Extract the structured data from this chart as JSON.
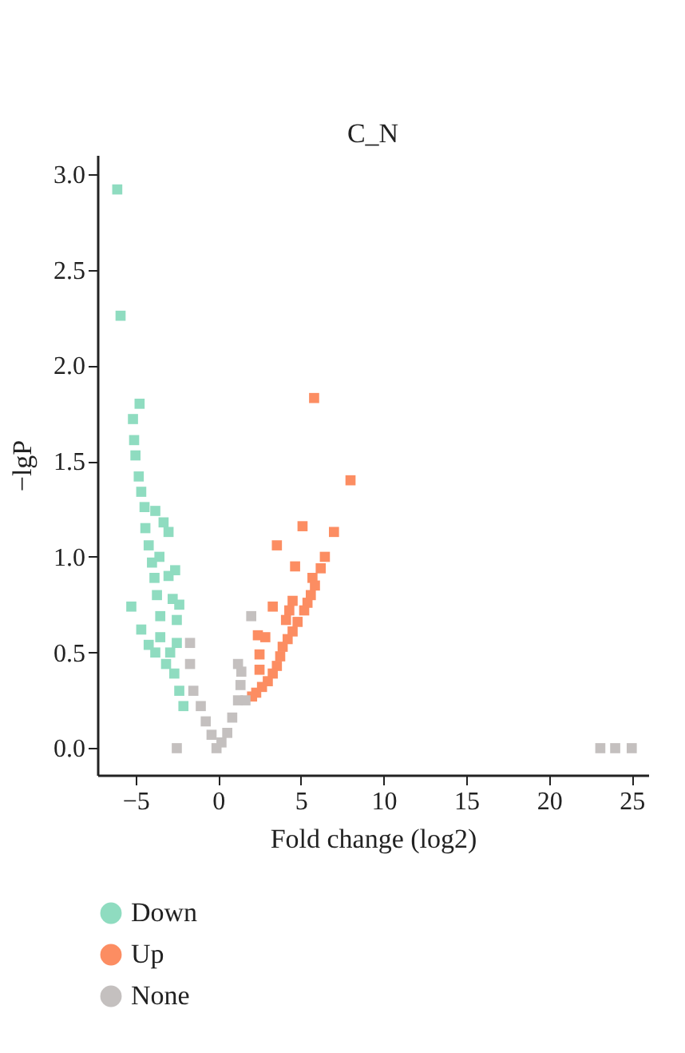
{
  "chart_data": {
    "type": "scatter",
    "title": "C_N",
    "xlabel": "Fold change (log2)",
    "ylabel": "−lgP",
    "xlim": [
      -7.3,
      26
    ],
    "ylim": [
      -0.14,
      3.1
    ],
    "xticks": [
      {
        "value": -5,
        "label": "−5"
      },
      0,
      5,
      10,
      15,
      20,
      25
    ],
    "yticks": [
      {
        "value": 0,
        "label": "0.0"
      },
      {
        "value": 0.5,
        "label": "0.5"
      },
      {
        "value": 1,
        "label": "1.0"
      },
      {
        "value": 1.5,
        "label": "1.5"
      },
      {
        "value": 2,
        "label": "2.0"
      },
      {
        "value": 2.5,
        "label": "2.5"
      },
      {
        "value": 3,
        "label": "3.0"
      }
    ],
    "grid": false,
    "legend": "bottom",
    "marker": "square",
    "series": [
      {
        "name": "Down",
        "color": "#8fdcc0",
        "x": [
          -6.1,
          -5.9,
          -4.75,
          -5.15,
          -5.08,
          -5.0,
          -4.8,
          -4.65,
          -4.45,
          -3.8,
          -3.3,
          -3.0,
          -4.4,
          -4.2,
          -3.55,
          -4.0,
          -2.6,
          -3.0,
          -3.85,
          -5.25,
          -3.7,
          -2.75,
          -2.35,
          -4.65,
          -3.5,
          -2.5,
          -4.2,
          -3.5,
          -3.8,
          -3.15,
          -2.65,
          -2.35,
          -2.1,
          -2.9,
          -2.5
        ],
        "values": [
          2.92,
          2.26,
          1.8,
          1.72,
          1.61,
          1.53,
          1.42,
          1.34,
          1.26,
          1.24,
          1.18,
          1.13,
          1.15,
          1.06,
          1.0,
          0.97,
          0.93,
          0.9,
          0.89,
          0.74,
          0.8,
          0.78,
          0.75,
          0.62,
          0.69,
          0.67,
          0.54,
          0.58,
          0.5,
          0.44,
          0.39,
          0.3,
          0.22,
          0.5,
          0.55
        ]
      },
      {
        "name": "Up",
        "color": "#fc8d62",
        "x": [
          5.8,
          8.0,
          5.1,
          7.0,
          3.55,
          6.45,
          6.2,
          4.65,
          5.7,
          5.85,
          5.6,
          5.4,
          5.2,
          4.5,
          4.3,
          3.3,
          4.8,
          4.1,
          4.5,
          4.2,
          2.4,
          2.85,
          3.9,
          2.5,
          3.75,
          3.55,
          2.5,
          3.3,
          3.0,
          2.65,
          2.3,
          2.05
        ],
        "values": [
          1.83,
          1.4,
          1.16,
          1.13,
          1.06,
          1.0,
          0.94,
          0.95,
          0.89,
          0.85,
          0.8,
          0.76,
          0.72,
          0.77,
          0.72,
          0.74,
          0.66,
          0.67,
          0.61,
          0.57,
          0.59,
          0.58,
          0.53,
          0.49,
          0.48,
          0.43,
          0.41,
          0.39,
          0.35,
          0.32,
          0.29,
          0.27
        ]
      },
      {
        "name": "None",
        "color": "#c4c0bf",
        "x": [
          -2.5,
          -1.7,
          -1.7,
          -1.5,
          -1.05,
          -0.75,
          -0.4,
          -0.1,
          0.2,
          0.55,
          0.85,
          1.2,
          1.35,
          2.0,
          1.65,
          1.2,
          1.4,
          23.1,
          24.0,
          25.0
        ],
        "values": [
          0.0,
          0.55,
          0.44,
          0.3,
          0.22,
          0.14,
          0.07,
          0.0,
          0.03,
          0.08,
          0.16,
          0.25,
          0.33,
          0.69,
          0.25,
          0.44,
          0.4,
          0.0,
          0.0,
          0.0
        ]
      }
    ]
  }
}
